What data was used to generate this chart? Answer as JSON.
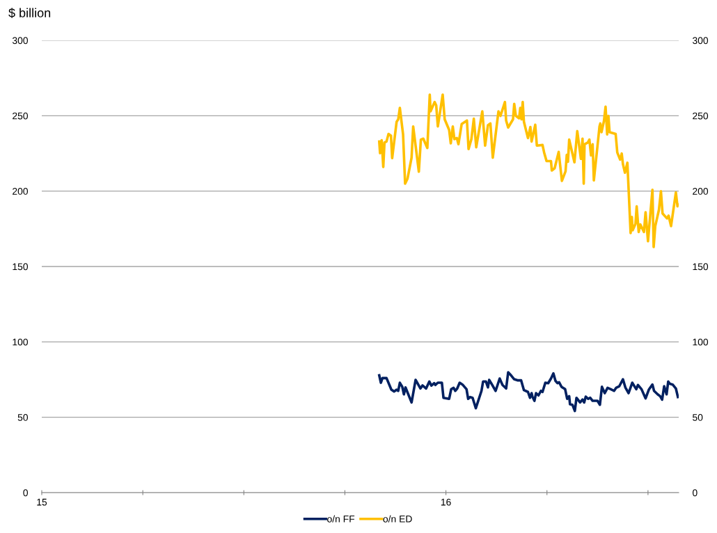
{
  "chart_data": {
    "type": "line",
    "ylabel": "$ billion",
    "xlim": [
      2015,
      2016.576
    ],
    "xticks": [
      {
        "value": 2015,
        "label": "15"
      },
      {
        "value": 2015.25,
        "label": null
      },
      {
        "value": 2015.5,
        "label": null
      },
      {
        "value": 2015.75,
        "label": null
      },
      {
        "value": 2016,
        "label": "16"
      },
      {
        "value": 2016.25,
        "label": null
      },
      {
        "value": 2016.5,
        "label": null
      }
    ],
    "ylim": [
      0,
      300
    ],
    "yticks": [
      0,
      50,
      100,
      150,
      200,
      250,
      300
    ],
    "y2lim": [
      0,
      300
    ],
    "y2ticks": [
      0,
      50,
      100,
      150,
      200,
      250,
      300
    ],
    "grid": "y",
    "legend": "bottom",
    "marker": "none",
    "line_style": "solid",
    "series": [
      {
        "name": "o/n FF",
        "color": "#002060",
        "x": [
          2015.835,
          2015.839,
          2015.843,
          2015.853,
          2015.865,
          2015.872,
          2015.878,
          2015.882,
          2015.886,
          2015.892,
          2015.896,
          2015.9,
          2015.915,
          2015.925,
          2015.937,
          2015.942,
          2015.951,
          2015.959,
          2015.964,
          2015.971,
          2015.974,
          2015.98,
          2015.99,
          2015.994,
          2016.008,
          2016.013,
          2016.019,
          2016.023,
          2016.028,
          2016.034,
          2016.041,
          2016.051,
          2016.055,
          2016.06,
          2016.066,
          2016.074,
          2016.088,
          2016.092,
          2016.099,
          2016.104,
          2016.107,
          2016.112,
          2016.123,
          2016.133,
          2016.14,
          2016.149,
          2016.154,
          2016.162,
          2016.169,
          2016.177,
          2016.186,
          2016.193,
          2016.203,
          2016.208,
          2016.212,
          2016.214,
          2016.219,
          2016.223,
          2016.229,
          2016.235,
          2016.239,
          2016.246,
          2016.253,
          2016.26,
          2016.266,
          2016.271,
          2016.276,
          2016.28,
          2016.286,
          2016.295,
          2016.3,
          2016.305,
          2016.307,
          2016.313,
          2016.319,
          2016.323,
          2016.332,
          2016.338,
          2016.342,
          2016.346,
          2016.352,
          2016.357,
          2016.363,
          2016.375,
          2016.381,
          2016.386,
          2016.393,
          2016.4,
          2016.408,
          2016.416,
          2016.421,
          2016.429,
          2016.438,
          2016.444,
          2016.452,
          2016.461,
          2016.471,
          2016.475,
          2016.484,
          2016.494,
          2016.502,
          2016.511,
          2016.515,
          2016.524,
          2016.53,
          2016.535,
          2016.54,
          2016.546,
          2016.55,
          2016.554,
          2016.561,
          2016.569,
          2016.574
        ],
        "values": [
          77.8,
          72.9,
          76.0,
          76.0,
          68.3,
          67.1,
          68.3,
          67.5,
          72.9,
          70.2,
          65.2,
          69.8,
          59.8,
          74.8,
          69.1,
          71.1,
          69.1,
          73.7,
          71.0,
          72.6,
          71.4,
          72.9,
          72.9,
          62.9,
          62.2,
          68.6,
          69.5,
          67.5,
          69.1,
          72.9,
          71.7,
          68.6,
          62.2,
          63.4,
          62.9,
          56.0,
          67.5,
          73.7,
          73.7,
          69.8,
          74.8,
          72.6,
          67.5,
          75.7,
          71.4,
          69.1,
          79.8,
          77.5,
          75.2,
          74.5,
          74.5,
          68.0,
          66.8,
          62.9,
          66.0,
          63.7,
          60.9,
          66.0,
          64.5,
          67.5,
          66.8,
          72.9,
          72.6,
          75.7,
          79.1,
          74.2,
          72.6,
          73.2,
          70.2,
          68.6,
          62.2,
          64.0,
          58.6,
          58.3,
          54.2,
          62.9,
          59.8,
          61.8,
          59.8,
          63.7,
          62.2,
          62.9,
          60.9,
          60.9,
          58.3,
          70.2,
          66.0,
          69.5,
          68.6,
          67.5,
          69.5,
          70.6,
          75.2,
          69.8,
          66.0,
          72.9,
          68.6,
          71.4,
          68.6,
          62.5,
          68.3,
          71.7,
          67.5,
          65.2,
          64.0,
          61.7,
          70.6,
          65.2,
          73.7,
          72.2,
          71.7,
          69.1,
          63.4
        ]
      },
      {
        "name": "o/n ED",
        "color": "#ffc000",
        "x": [
          2015.835,
          2015.837,
          2015.841,
          2015.845,
          2015.848,
          2015.853,
          2015.858,
          2015.864,
          2015.867,
          2015.878,
          2015.882,
          2015.886,
          2015.894,
          2015.899,
          2015.905,
          2015.915,
          2015.919,
          2015.933,
          2015.938,
          2015.944,
          2015.954,
          2015.96,
          2015.962,
          2015.972,
          2015.976,
          2015.98,
          2015.992,
          2015.997,
          2016.008,
          2016.012,
          2016.017,
          2016.021,
          2016.027,
          2016.031,
          2016.039,
          2016.052,
          2016.056,
          2016.063,
          2016.069,
          2016.075,
          2016.09,
          2016.097,
          2016.104,
          2016.11,
          2016.116,
          2016.13,
          2016.135,
          2016.146,
          2016.149,
          2016.154,
          2016.166,
          2016.169,
          2016.173,
          2016.181,
          2016.184,
          2016.187,
          2016.19,
          2016.193,
          2016.203,
          2016.209,
          2016.212,
          2016.221,
          2016.225,
          2016.239,
          2016.243,
          2016.249,
          2016.26,
          2016.262,
          2016.269,
          2016.279,
          2016.287,
          2016.296,
          2016.299,
          2016.302,
          2016.305,
          2016.318,
          2016.325,
          2016.334,
          2016.338,
          2016.341,
          2016.343,
          2016.351,
          2016.355,
          2016.359,
          2016.363,
          2016.366,
          2016.375,
          2016.38,
          2016.382,
          2016.385,
          2016.391,
          2016.395,
          2016.399,
          2016.402,
          2016.405,
          2016.42,
          2016.424,
          2016.431,
          2016.435,
          2016.438,
          2016.443,
          2016.449,
          2016.457,
          2016.46,
          2016.462,
          2016.469,
          2016.472,
          2016.477,
          2016.481,
          2016.49,
          2016.494,
          2016.5,
          2016.511,
          2016.514,
          2016.518,
          2016.527,
          2016.532,
          2016.536,
          2016.547,
          2016.551,
          2016.557,
          2016.569,
          2016.573,
          2016.575
        ],
        "values": [
          232.9,
          225.2,
          233.7,
          216.0,
          232.2,
          232.9,
          237.9,
          236.8,
          221.9,
          246.0,
          247.6,
          255.2,
          237.6,
          204.9,
          208.3,
          222.2,
          242.9,
          212.9,
          234.2,
          234.8,
          228.6,
          264.0,
          252.9,
          259.1,
          256.8,
          242.9,
          264.0,
          247.6,
          240.6,
          231.7,
          242.9,
          234.5,
          235.2,
          231.1,
          244.5,
          246.8,
          227.9,
          234.5,
          248.0,
          229.1,
          252.9,
          230.2,
          243.7,
          244.9,
          222.2,
          252.9,
          249.9,
          259.1,
          246.8,
          242.2,
          247.6,
          257.9,
          249.9,
          248.3,
          255.2,
          247.6,
          259.1,
          246.0,
          235.2,
          242.5,
          232.9,
          244.0,
          230.2,
          230.6,
          225.6,
          219.9,
          219.9,
          213.7,
          215.2,
          226.0,
          206.8,
          213.2,
          224.0,
          219.5,
          234.2,
          219.1,
          239.8,
          221.4,
          234.8,
          204.9,
          231.1,
          232.2,
          234.2,
          223.7,
          231.1,
          207.1,
          229.9,
          242.9,
          244.9,
          239.1,
          246.5,
          256.0,
          237.6,
          249.9,
          239.1,
          237.9,
          225.6,
          220.9,
          224.9,
          217.9,
          212.2,
          218.8,
          172.2,
          182.9,
          174.0,
          178.3,
          189.9,
          172.9,
          177.9,
          172.9,
          186.0,
          166.8,
          200.9,
          162.9,
          176.8,
          187.5,
          199.9,
          185.2,
          181.9,
          183.7,
          176.8,
          199.1,
          189.9,
          191.1
        ]
      }
    ]
  }
}
